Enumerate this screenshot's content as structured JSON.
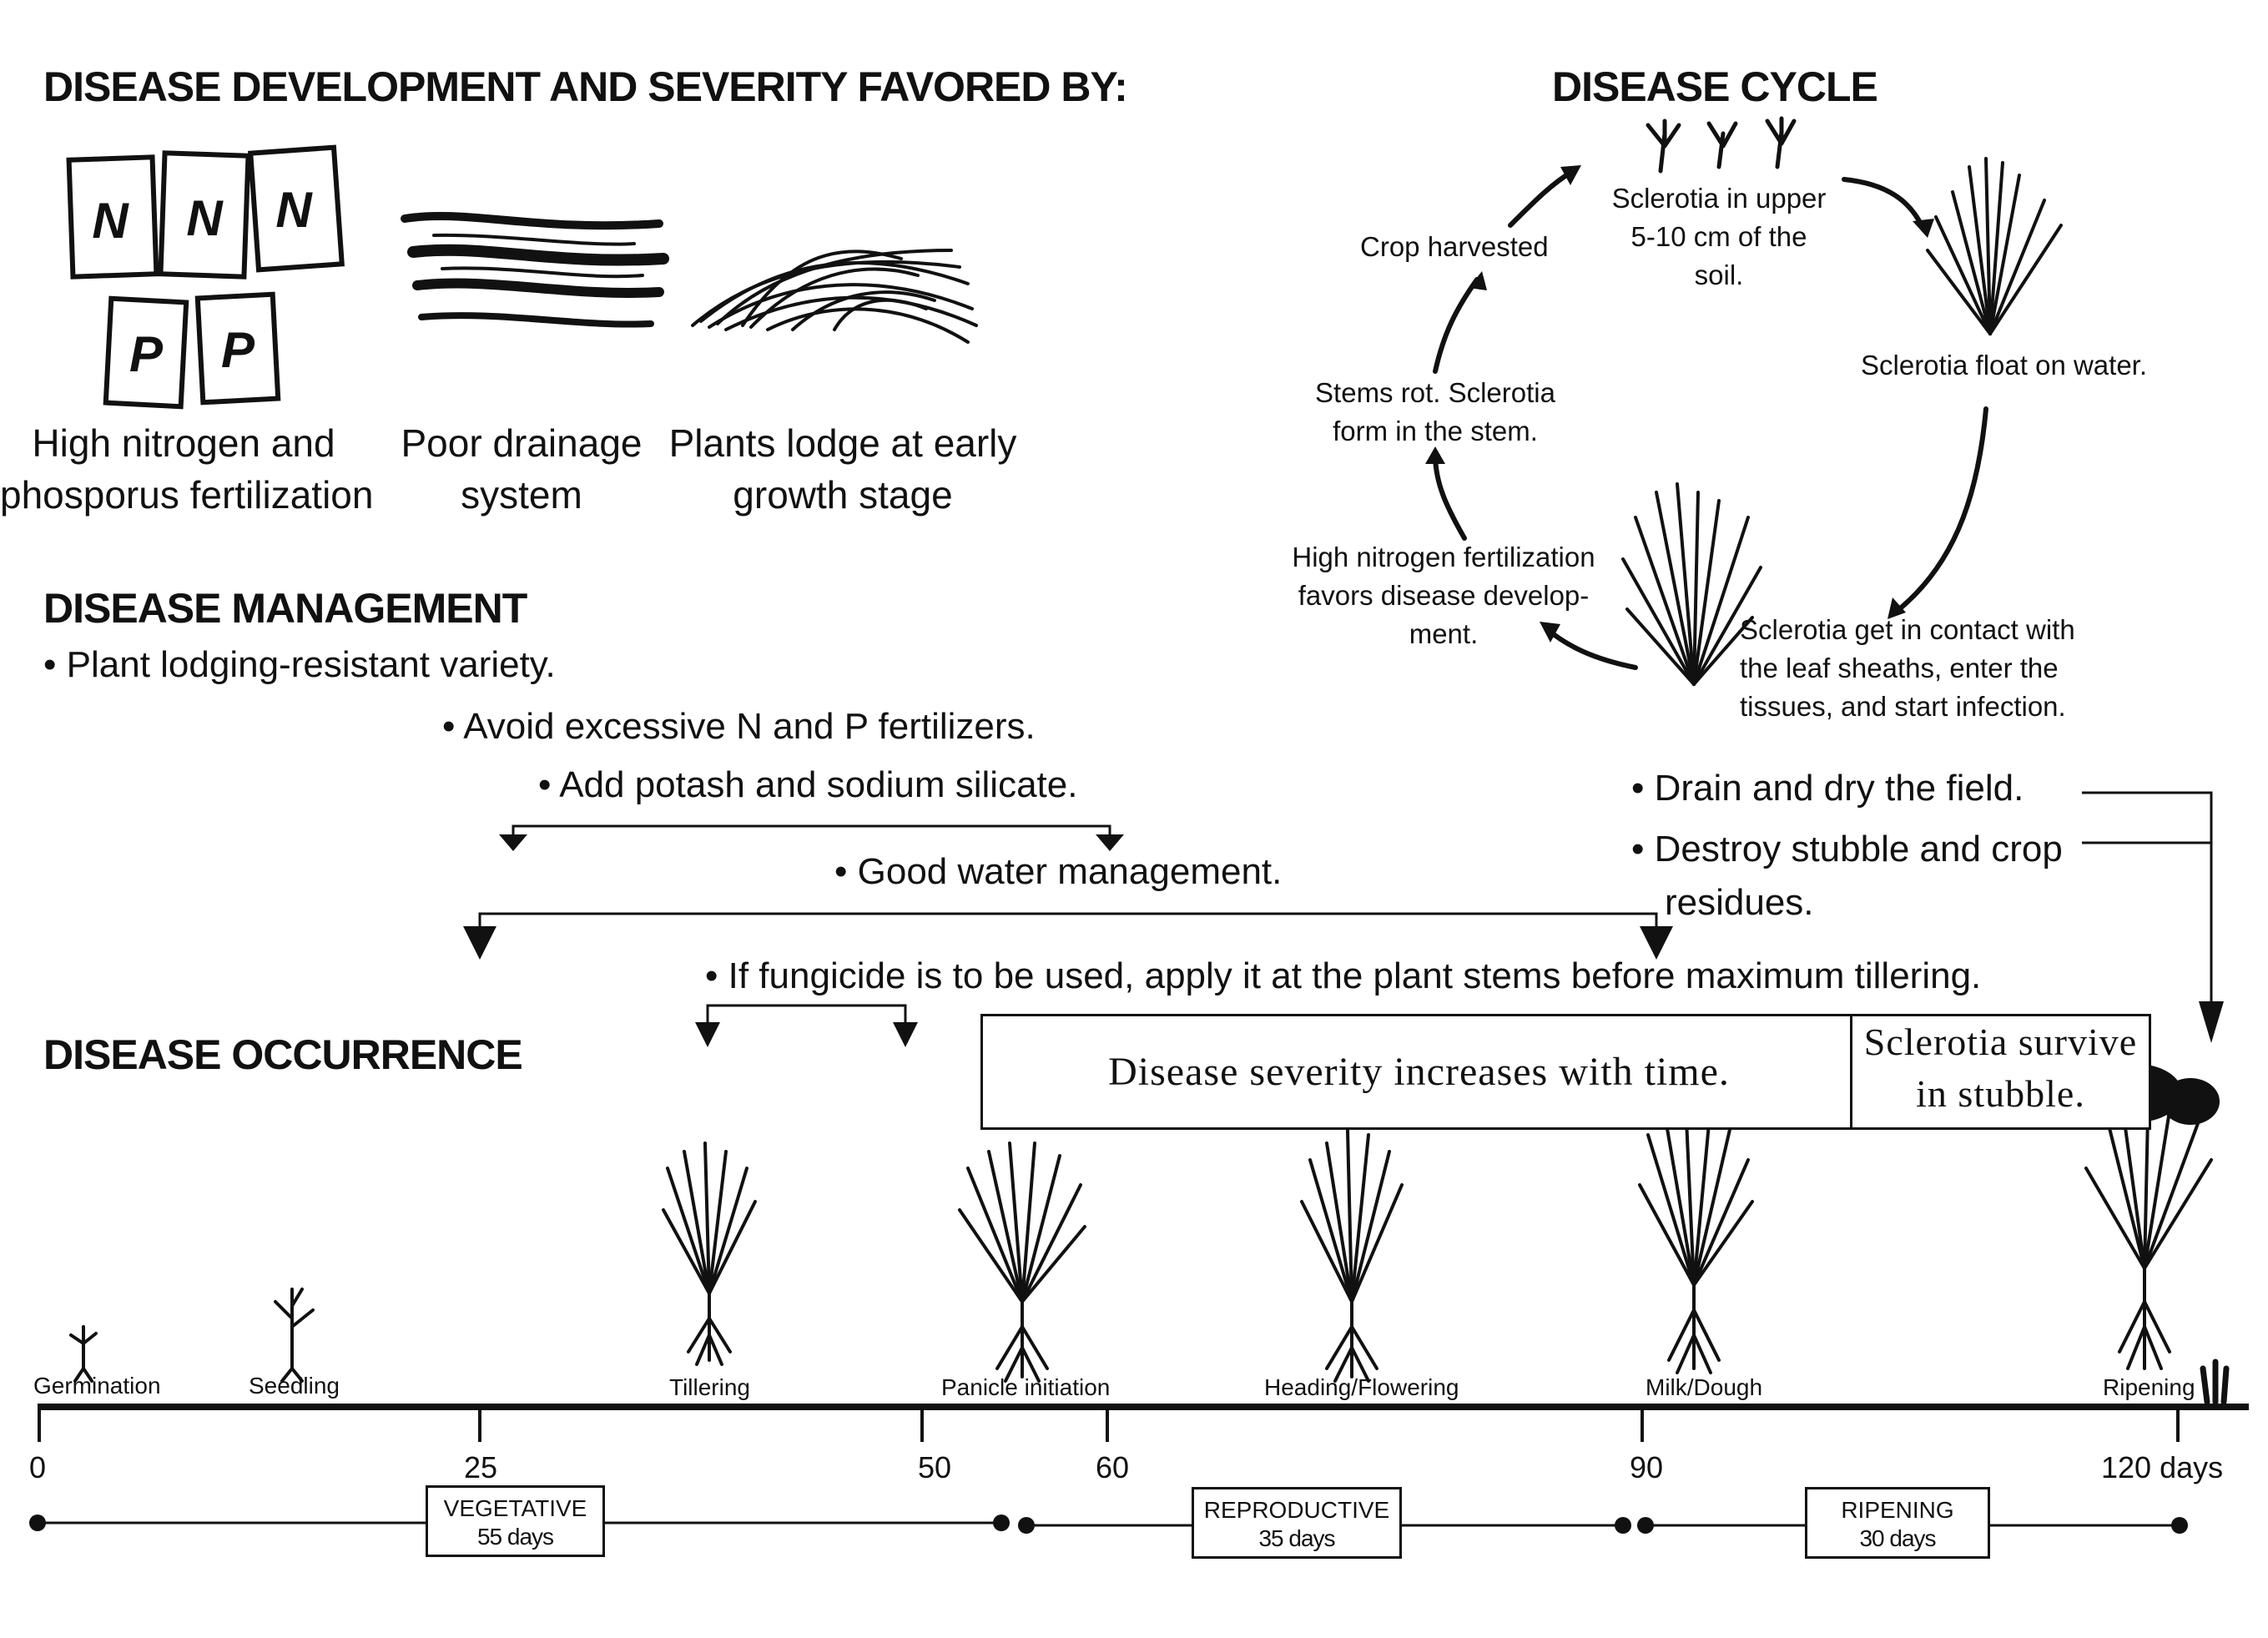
{
  "headings": {
    "favored": "DISEASE DEVELOPMENT AND SEVERITY FAVORED BY:",
    "cycle": "DISEASE CYCLE",
    "management": "DISEASE MANAGEMENT",
    "occurrence": "DISEASE OCCURRENCE"
  },
  "favored_by": {
    "fert_line1": "High nitrogen and",
    "fert_line2": "phosporus fertilization",
    "drain_line1": "Poor drainage",
    "drain_line2": "system",
    "lodge_line1": "Plants lodge at early",
    "lodge_line2": "growth stage",
    "bag_n": "N",
    "bag_p": "P"
  },
  "cycle": {
    "sclerotia_soil": [
      "Sclerotia in upper",
      "5-10 cm of the",
      "soil."
    ],
    "float": "Sclerotia float on water.",
    "contact": [
      "Sclerotia get in contact with",
      "the leaf sheaths, enter the",
      "tissues, and start infection."
    ],
    "nitrogen": [
      "High nitrogen fertilization",
      "favors disease develop-",
      "ment."
    ],
    "stems_rot": [
      "Stems rot. Sclerotia",
      "form in the stem."
    ],
    "harvested": "Crop harvested"
  },
  "management": {
    "b1": "• Plant lodging-resistant variety.",
    "b2": "• Avoid excessive N and P fertilizers.",
    "b3": "• Add potash and sodium silicate.",
    "b4": "• Good water management.",
    "b5": "• Drain and dry the field.",
    "b6a": "• Destroy stubble and crop",
    "b6b": "residues.",
    "b7": "• If fungicide is to be used, apply it at the plant stems before maximum tillering."
  },
  "occurrence": {
    "severity": "Disease severity increases with time.",
    "survive1": "Sclerotia survive",
    "survive2": "in stubble."
  },
  "timeline": {
    "stages": [
      "Germination",
      "Seedling",
      "Tillering",
      "Panicle initiation",
      "Heading/Flowering",
      "Milk/Dough",
      "Ripening"
    ],
    "ticks": [
      "0",
      "25",
      "50",
      "60",
      "90",
      "120 days"
    ],
    "phases": [
      {
        "name": "VEGETATIVE",
        "days": "55 days"
      },
      {
        "name": "REPRODUCTIVE",
        "days": "35 days"
      },
      {
        "name": "RIPENING",
        "days": "30 days"
      }
    ]
  }
}
